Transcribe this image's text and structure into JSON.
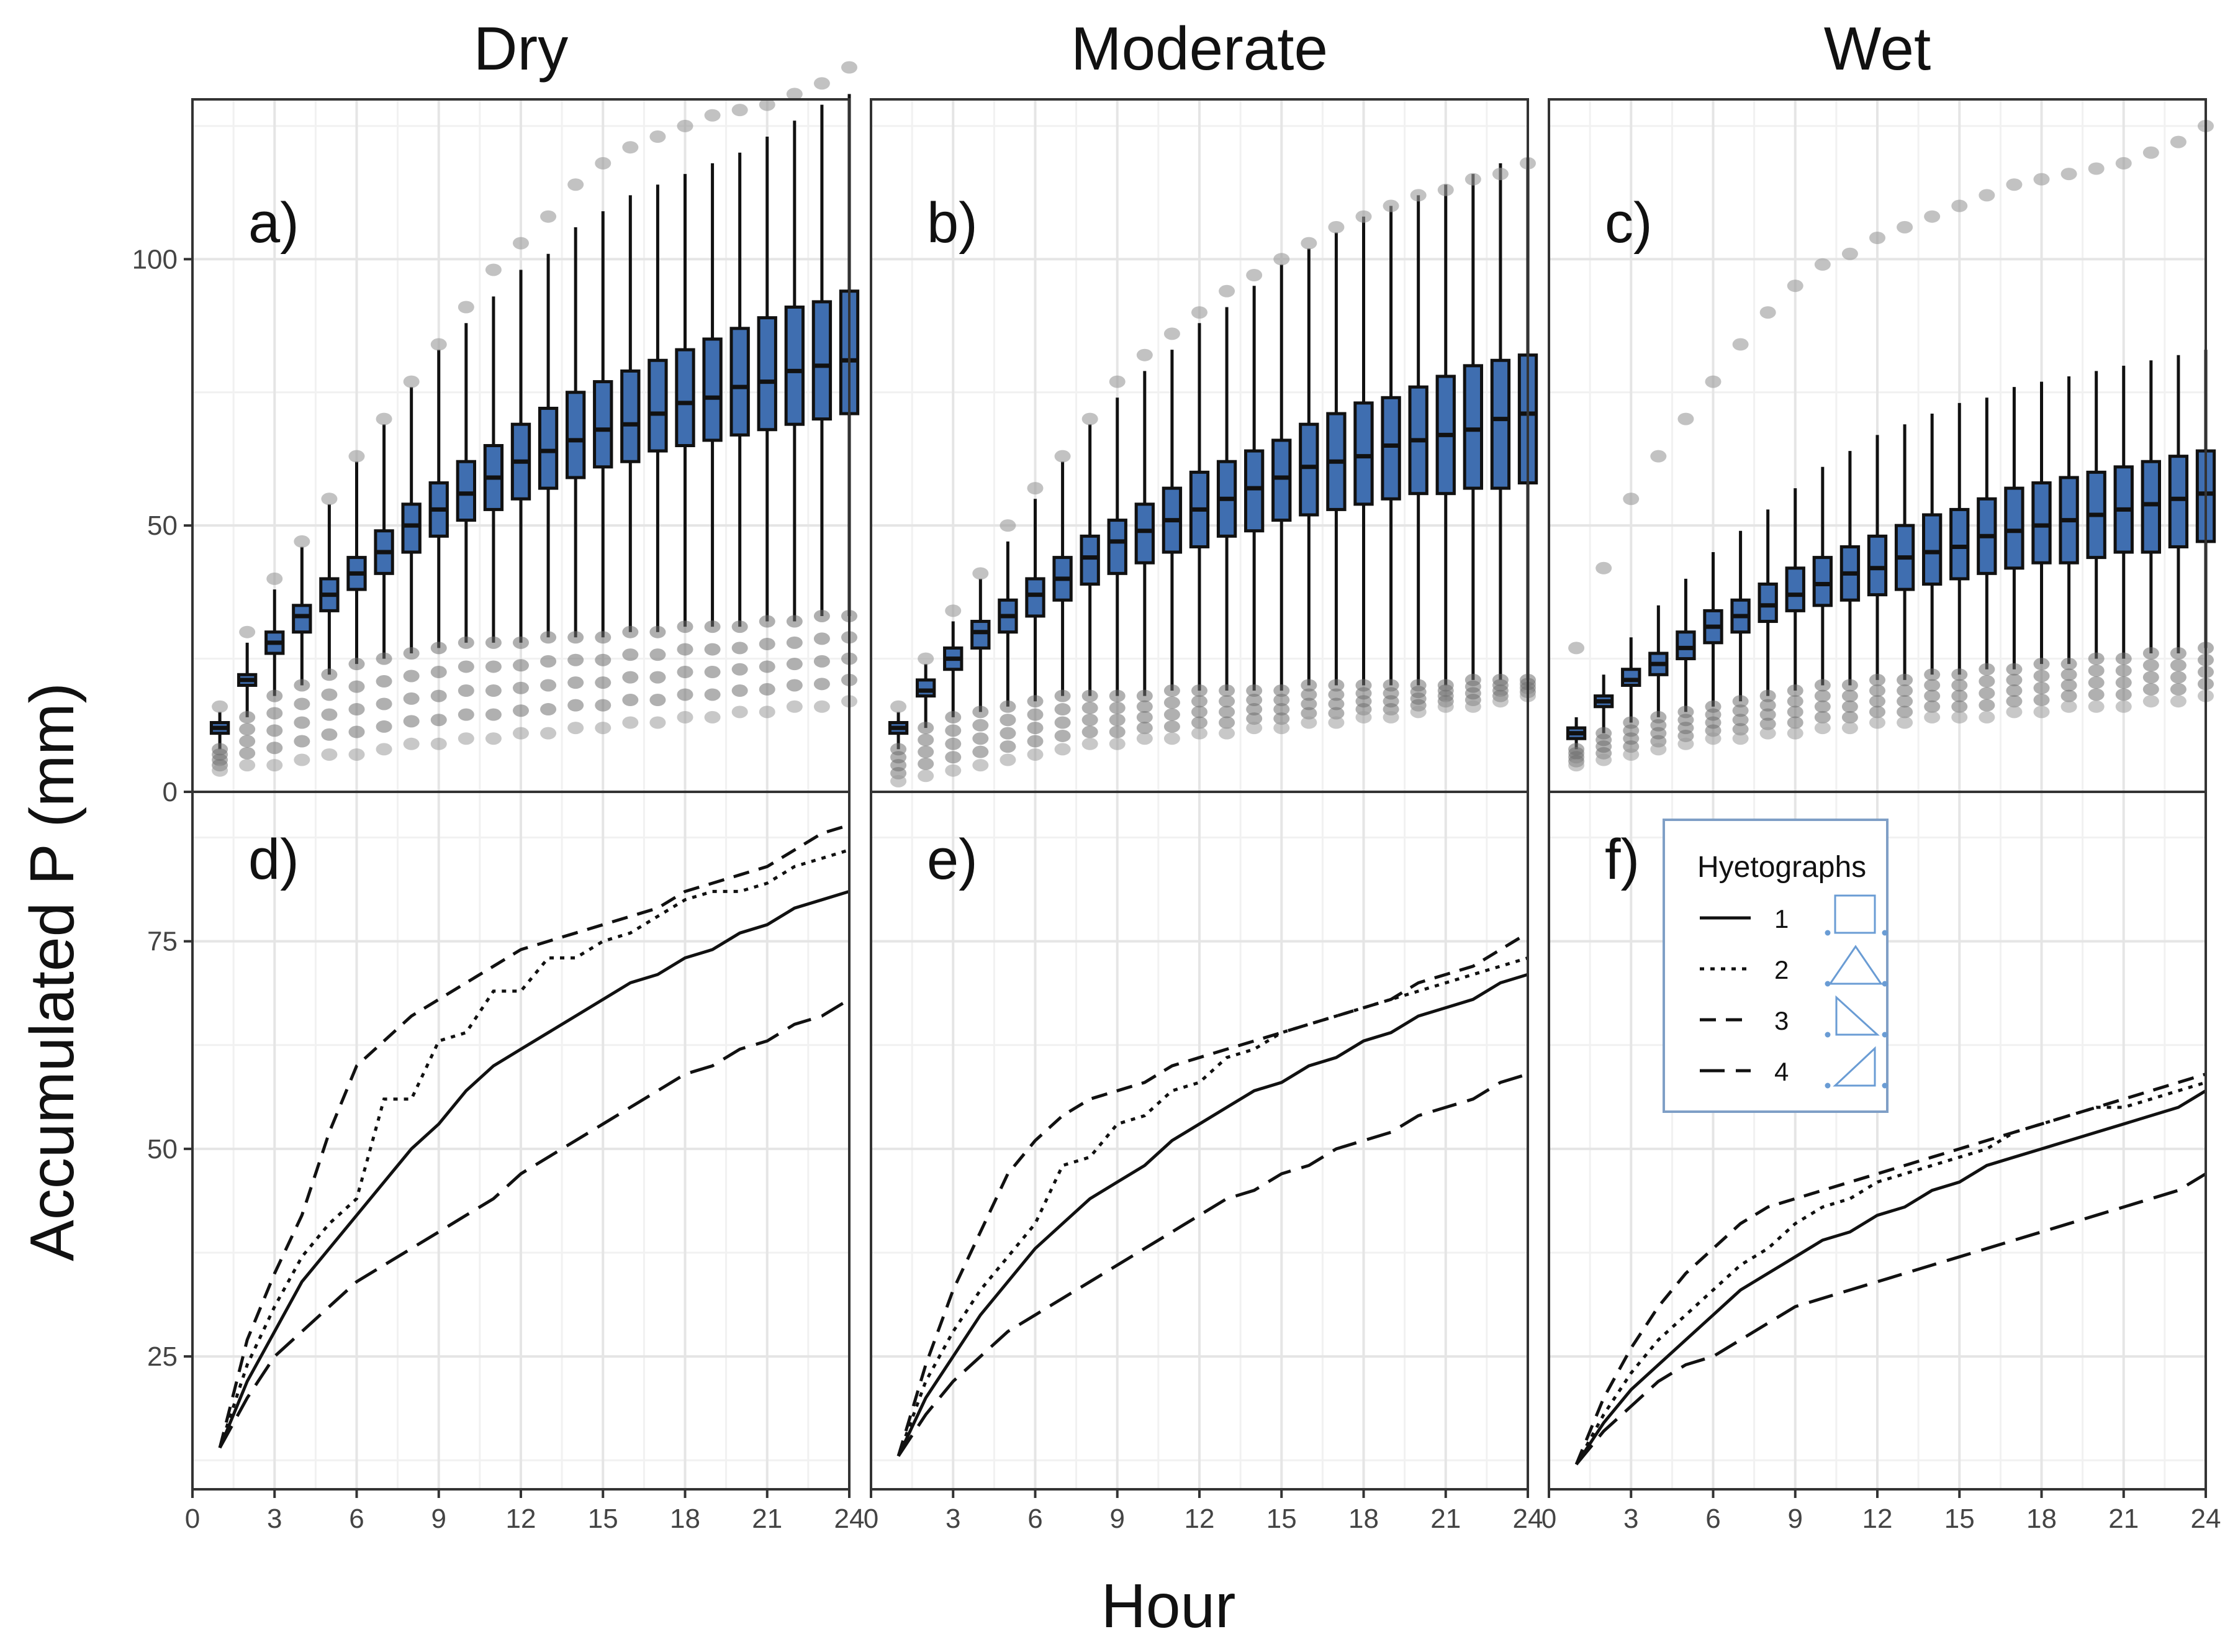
{
  "figure": {
    "ylabel": "Accumulated P (mm)",
    "xlabel": "Hour",
    "colors": {
      "box_fill": "#3f6eb0",
      "box_stroke": "#111111",
      "outlier": "#9a9a9a",
      "line": "#111111",
      "grid": "#e5e5e5",
      "legend_border": "#7f9fc6",
      "legend_icon": "#6a9cd4"
    }
  },
  "legend": {
    "title": "Hyetographs",
    "items": [
      {
        "label": "1",
        "style": "solid",
        "icon": "square-hyetograph-icon"
      },
      {
        "label": "2",
        "style": "dotted",
        "icon": "triangle-hyetograph-icon"
      },
      {
        "label": "3",
        "style": "dashed",
        "icon": "early-peak-hyetograph-icon"
      },
      {
        "label": "4",
        "style": "long-dashed",
        "icon": "late-peak-hyetograph-icon"
      }
    ]
  },
  "chart_data": [
    {
      "type": "box",
      "column": "Dry",
      "panel_label": "a)",
      "xlim": [
        0,
        24
      ],
      "ylim": [
        0,
        130
      ],
      "xticks": [
        0,
        3,
        6,
        9,
        12,
        15,
        18,
        21,
        24
      ],
      "yticks": [
        0,
        50,
        100
      ],
      "hours": [
        1,
        2,
        3,
        4,
        5,
        6,
        7,
        8,
        9,
        10,
        11,
        12,
        13,
        14,
        15,
        16,
        17,
        18,
        19,
        20,
        21,
        22,
        23,
        24
      ],
      "median": [
        12,
        21,
        28,
        33,
        37,
        41,
        45,
        50,
        53,
        56,
        59,
        62,
        64,
        66,
        68,
        69,
        71,
        73,
        74,
        76,
        77,
        79,
        80,
        81
      ],
      "q1": [
        11,
        20,
        26,
        30,
        34,
        38,
        41,
        45,
        48,
        51,
        53,
        55,
        57,
        59,
        61,
        62,
        64,
        65,
        66,
        67,
        68,
        69,
        70,
        71
      ],
      "q3": [
        13,
        22,
        30,
        35,
        40,
        44,
        49,
        54,
        58,
        62,
        65,
        69,
        72,
        75,
        77,
        79,
        81,
        83,
        85,
        87,
        89,
        91,
        92,
        94
      ],
      "whisker_low": [
        8,
        14,
        18,
        20,
        22,
        24,
        25,
        26,
        27,
        28,
        28,
        28,
        29,
        29,
        29,
        30,
        30,
        31,
        31,
        31,
        32,
        32,
        33,
        33
      ],
      "whisker_high": [
        15,
        28,
        38,
        46,
        54,
        62,
        69,
        76,
        83,
        88,
        93,
        98,
        101,
        106,
        109,
        112,
        114,
        116,
        118,
        120,
        123,
        126,
        129,
        131
      ],
      "outliers_high": [
        16,
        30,
        40,
        47,
        55,
        63,
        70,
        77,
        84,
        91,
        98,
        103,
        108,
        114,
        118,
        121,
        123,
        125,
        127,
        128,
        129,
        131,
        133,
        136
      ],
      "outliers_low": [
        4,
        5,
        5,
        6,
        7,
        7,
        8,
        9,
        9,
        10,
        10,
        11,
        11,
        12,
        12,
        13,
        13,
        14,
        14,
        15,
        15,
        16,
        16,
        17
      ]
    },
    {
      "type": "box",
      "column": "Moderate",
      "panel_label": "b)",
      "xlim": [
        0,
        24
      ],
      "ylim": [
        0,
        130
      ],
      "xticks": [
        0,
        3,
        6,
        9,
        12,
        15,
        18,
        21,
        24
      ],
      "yticks": [
        0,
        50,
        100
      ],
      "hours": [
        1,
        2,
        3,
        4,
        5,
        6,
        7,
        8,
        9,
        10,
        11,
        12,
        13,
        14,
        15,
        16,
        17,
        18,
        19,
        20,
        21,
        22,
        23,
        24
      ],
      "median": [
        12,
        19,
        25,
        30,
        33,
        37,
        40,
        44,
        47,
        49,
        51,
        53,
        55,
        57,
        59,
        61,
        62,
        63,
        65,
        66,
        67,
        68,
        70,
        71
      ],
      "q1": [
        11,
        18,
        23,
        27,
        30,
        33,
        36,
        39,
        41,
        43,
        45,
        46,
        48,
        49,
        51,
        52,
        53,
        54,
        55,
        56,
        56,
        57,
        57,
        58
      ],
      "q3": [
        13,
        21,
        27,
        32,
        36,
        40,
        44,
        48,
        51,
        54,
        57,
        60,
        62,
        64,
        66,
        69,
        71,
        73,
        74,
        76,
        78,
        80,
        81,
        82
      ],
      "whisker_low": [
        8,
        12,
        14,
        15,
        16,
        17,
        18,
        18,
        18,
        18,
        19,
        19,
        19,
        19,
        19,
        20,
        20,
        20,
        20,
        20,
        20,
        21,
        21,
        21
      ],
      "whisker_high": [
        15,
        24,
        32,
        40,
        47,
        55,
        62,
        69,
        74,
        79,
        83,
        88,
        91,
        95,
        99,
        102,
        105,
        108,
        110,
        112,
        114,
        116,
        118,
        119
      ],
      "outliers_high": [
        16,
        25,
        34,
        41,
        50,
        57,
        63,
        70,
        77,
        82,
        86,
        90,
        94,
        97,
        100,
        103,
        106,
        108,
        110,
        112,
        113,
        115,
        116,
        118
      ],
      "outliers_low": [
        2,
        3,
        4,
        5,
        6,
        7,
        8,
        9,
        9,
        10,
        10,
        11,
        11,
        12,
        12,
        13,
        13,
        14,
        14,
        15,
        16,
        16,
        17,
        18
      ]
    },
    {
      "type": "box",
      "column": "Wet",
      "panel_label": "c)",
      "xlim": [
        0,
        24
      ],
      "ylim": [
        0,
        130
      ],
      "xticks": [
        0,
        3,
        6,
        9,
        12,
        15,
        18,
        21,
        24
      ],
      "yticks": [
        0,
        50,
        100
      ],
      "hours": [
        1,
        2,
        3,
        4,
        5,
        6,
        7,
        8,
        9,
        10,
        11,
        12,
        13,
        14,
        15,
        16,
        17,
        18,
        19,
        20,
        21,
        22,
        23,
        24
      ],
      "median": [
        11,
        17,
        21,
        24,
        27,
        31,
        33,
        35,
        37,
        39,
        41,
        42,
        44,
        45,
        46,
        48,
        49,
        50,
        51,
        52,
        53,
        54,
        55,
        56
      ],
      "q1": [
        10,
        16,
        20,
        22,
        25,
        28,
        30,
        32,
        34,
        35,
        36,
        37,
        38,
        39,
        40,
        41,
        42,
        43,
        43,
        44,
        45,
        45,
        46,
        47
      ],
      "q3": [
        12,
        18,
        23,
        26,
        30,
        34,
        36,
        39,
        42,
        44,
        46,
        48,
        50,
        52,
        53,
        55,
        57,
        58,
        59,
        60,
        61,
        62,
        63,
        64
      ],
      "whisker_low": [
        8,
        11,
        13,
        14,
        15,
        16,
        17,
        18,
        19,
        20,
        20,
        21,
        21,
        22,
        22,
        23,
        23,
        24,
        24,
        25,
        25,
        26,
        26,
        27
      ],
      "whisker_high": [
        14,
        22,
        29,
        35,
        40,
        45,
        49,
        53,
        57,
        61,
        64,
        67,
        69,
        71,
        73,
        74,
        76,
        77,
        78,
        79,
        80,
        81,
        82,
        83
      ],
      "outliers_high": [
        27,
        42,
        55,
        63,
        70,
        77,
        84,
        90,
        95,
        99,
        101,
        104,
        106,
        108,
        110,
        112,
        114,
        115,
        116,
        117,
        118,
        120,
        122,
        125
      ],
      "outliers_low": [
        5,
        6,
        7,
        8,
        9,
        10,
        10,
        11,
        11,
        12,
        12,
        13,
        13,
        14,
        14,
        14,
        15,
        15,
        16,
        16,
        16,
        17,
        17,
        18
      ]
    },
    {
      "type": "line",
      "column": "Dry",
      "panel_label": "d)",
      "xlim": [
        0,
        24
      ],
      "ylim": [
        9,
        93
      ],
      "xticks": [
        0,
        3,
        6,
        9,
        12,
        15,
        18,
        21,
        24
      ],
      "yticks": [
        25,
        50,
        75
      ],
      "x": [
        1,
        2,
        3,
        4,
        5,
        6,
        7,
        8,
        9,
        10,
        11,
        12,
        13,
        14,
        15,
        16,
        17,
        18,
        19,
        20,
        21,
        22,
        23,
        24
      ],
      "series": [
        {
          "name": "1",
          "values": [
            14,
            22,
            28,
            34,
            38,
            42,
            46,
            50,
            53,
            57,
            60,
            62,
            64,
            66,
            68,
            70,
            71,
            73,
            74,
            76,
            77,
            79,
            80,
            81
          ]
        },
        {
          "name": "2",
          "values": [
            14,
            24,
            31,
            37,
            41,
            44,
            56,
            56,
            63,
            64,
            69,
            69,
            73,
            73,
            75,
            76,
            78,
            80,
            81,
            81,
            82,
            84,
            85,
            86
          ]
        },
        {
          "name": "3",
          "values": [
            14,
            27,
            35,
            42,
            52,
            60,
            63,
            66,
            68,
            70,
            72,
            74,
            75,
            76,
            77,
            78,
            79,
            81,
            82,
            83,
            84,
            86,
            88,
            89
          ]
        },
        {
          "name": "4",
          "values": [
            14,
            20,
            25,
            28,
            31,
            34,
            36,
            38,
            40,
            42,
            44,
            47,
            49,
            51,
            53,
            55,
            57,
            59,
            60,
            62,
            63,
            65,
            66,
            68
          ]
        }
      ]
    },
    {
      "type": "line",
      "column": "Moderate",
      "panel_label": "e)",
      "xlim": [
        0,
        24
      ],
      "ylim": [
        9,
        93
      ],
      "xticks": [
        0,
        3,
        6,
        9,
        12,
        15,
        18,
        21,
        24
      ],
      "yticks": [
        25,
        50,
        75
      ],
      "x": [
        1,
        2,
        3,
        4,
        5,
        6,
        7,
        8,
        9,
        10,
        11,
        12,
        13,
        14,
        15,
        16,
        17,
        18,
        19,
        20,
        21,
        22,
        23,
        24
      ],
      "series": [
        {
          "name": "1",
          "values": [
            13,
            20,
            25,
            30,
            34,
            38,
            41,
            44,
            46,
            48,
            51,
            53,
            55,
            57,
            58,
            60,
            61,
            63,
            64,
            66,
            67,
            68,
            70,
            71
          ]
        },
        {
          "name": "2",
          "values": [
            13,
            22,
            28,
            33,
            37,
            41,
            48,
            49,
            53,
            54,
            57,
            58,
            61,
            62,
            64,
            65,
            66,
            67,
            68,
            69,
            70,
            71,
            72,
            73
          ]
        },
        {
          "name": "3",
          "values": [
            13,
            24,
            33,
            40,
            47,
            51,
            54,
            56,
            57,
            58,
            60,
            61,
            62,
            63,
            64,
            65,
            66,
            67,
            68,
            70,
            71,
            72,
            74,
            76
          ]
        },
        {
          "name": "4",
          "values": [
            13,
            18,
            22,
            25,
            28,
            30,
            32,
            34,
            36,
            38,
            40,
            42,
            44,
            45,
            47,
            48,
            50,
            51,
            52,
            54,
            55,
            56,
            58,
            59
          ]
        }
      ]
    },
    {
      "type": "line",
      "column": "Wet",
      "panel_label": "f)",
      "xlim": [
        0,
        24
      ],
      "ylim": [
        9,
        93
      ],
      "xticks": [
        0,
        3,
        6,
        9,
        12,
        15,
        18,
        21,
        24
      ],
      "yticks": [
        25,
        50,
        75
      ],
      "x": [
        1,
        2,
        3,
        4,
        5,
        6,
        7,
        8,
        9,
        10,
        11,
        12,
        13,
        14,
        15,
        16,
        17,
        18,
        19,
        20,
        21,
        22,
        23,
        24
      ],
      "series": [
        {
          "name": "1",
          "values": [
            12,
            17,
            21,
            24,
            27,
            30,
            33,
            35,
            37,
            39,
            40,
            42,
            43,
            45,
            46,
            48,
            49,
            50,
            51,
            52,
            53,
            54,
            55,
            57
          ]
        },
        {
          "name": "2",
          "values": [
            12,
            18,
            23,
            27,
            30,
            33,
            36,
            38,
            41,
            43,
            44,
            46,
            47,
            48,
            49,
            50,
            52,
            53,
            54,
            55,
            55,
            56,
            57,
            58
          ]
        },
        {
          "name": "3",
          "values": [
            12,
            20,
            26,
            31,
            35,
            38,
            41,
            43,
            44,
            45,
            46,
            47,
            48,
            49,
            50,
            51,
            52,
            53,
            54,
            55,
            56,
            57,
            58,
            59
          ]
        },
        {
          "name": "4",
          "values": [
            12,
            16,
            19,
            22,
            24,
            25,
            27,
            29,
            31,
            32,
            33,
            34,
            35,
            36,
            37,
            38,
            39,
            40,
            41,
            42,
            43,
            44,
            45,
            47
          ]
        }
      ]
    }
  ]
}
